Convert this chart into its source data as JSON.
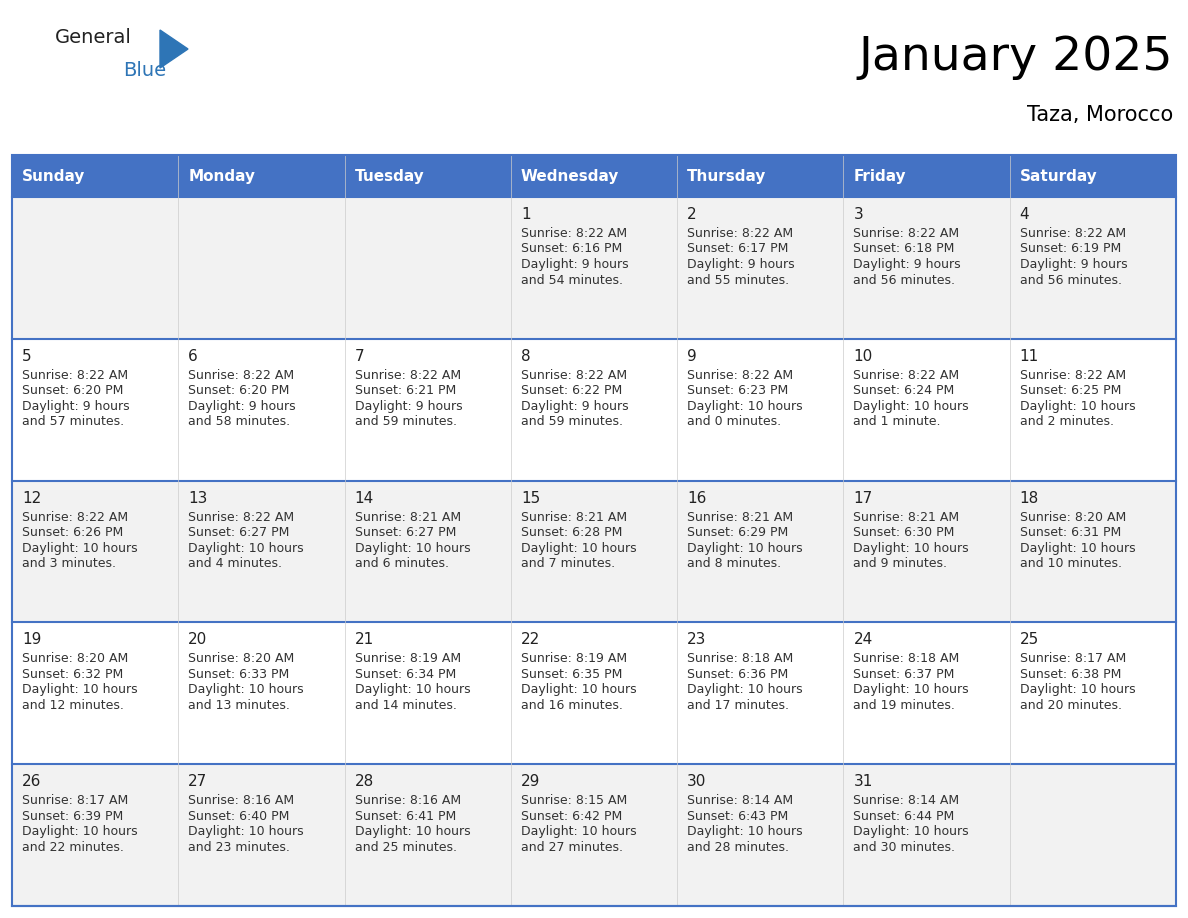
{
  "title": "January 2025",
  "subtitle": "Taza, Morocco",
  "days_of_week": [
    "Sunday",
    "Monday",
    "Tuesday",
    "Wednesday",
    "Thursday",
    "Friday",
    "Saturday"
  ],
  "header_bg": "#4472C4",
  "header_text": "#FFFFFF",
  "cell_bg_odd": "#F2F2F2",
  "cell_bg_even": "#FFFFFF",
  "row_separator_color": "#4472C4",
  "col_separator_color": "#CCCCCC",
  "day_num_color": "#222222",
  "text_color": "#333333",
  "calendar_data": [
    [
      {
        "day": null,
        "sunrise": null,
        "sunset": null,
        "daylight": null
      },
      {
        "day": null,
        "sunrise": null,
        "sunset": null,
        "daylight": null
      },
      {
        "day": null,
        "sunrise": null,
        "sunset": null,
        "daylight": null
      },
      {
        "day": 1,
        "sunrise": "8:22 AM",
        "sunset": "6:16 PM",
        "daylight": "9 hours and 54 minutes."
      },
      {
        "day": 2,
        "sunrise": "8:22 AM",
        "sunset": "6:17 PM",
        "daylight": "9 hours and 55 minutes."
      },
      {
        "day": 3,
        "sunrise": "8:22 AM",
        "sunset": "6:18 PM",
        "daylight": "9 hours and 56 minutes."
      },
      {
        "day": 4,
        "sunrise": "8:22 AM",
        "sunset": "6:19 PM",
        "daylight": "9 hours and 56 minutes."
      }
    ],
    [
      {
        "day": 5,
        "sunrise": "8:22 AM",
        "sunset": "6:20 PM",
        "daylight": "9 hours and 57 minutes."
      },
      {
        "day": 6,
        "sunrise": "8:22 AM",
        "sunset": "6:20 PM",
        "daylight": "9 hours and 58 minutes."
      },
      {
        "day": 7,
        "sunrise": "8:22 AM",
        "sunset": "6:21 PM",
        "daylight": "9 hours and 59 minutes."
      },
      {
        "day": 8,
        "sunrise": "8:22 AM",
        "sunset": "6:22 PM",
        "daylight": "9 hours and 59 minutes."
      },
      {
        "day": 9,
        "sunrise": "8:22 AM",
        "sunset": "6:23 PM",
        "daylight": "10 hours and 0 minutes."
      },
      {
        "day": 10,
        "sunrise": "8:22 AM",
        "sunset": "6:24 PM",
        "daylight": "10 hours and 1 minute."
      },
      {
        "day": 11,
        "sunrise": "8:22 AM",
        "sunset": "6:25 PM",
        "daylight": "10 hours and 2 minutes."
      }
    ],
    [
      {
        "day": 12,
        "sunrise": "8:22 AM",
        "sunset": "6:26 PM",
        "daylight": "10 hours and 3 minutes."
      },
      {
        "day": 13,
        "sunrise": "8:22 AM",
        "sunset": "6:27 PM",
        "daylight": "10 hours and 4 minutes."
      },
      {
        "day": 14,
        "sunrise": "8:21 AM",
        "sunset": "6:27 PM",
        "daylight": "10 hours and 6 minutes."
      },
      {
        "day": 15,
        "sunrise": "8:21 AM",
        "sunset": "6:28 PM",
        "daylight": "10 hours and 7 minutes."
      },
      {
        "day": 16,
        "sunrise": "8:21 AM",
        "sunset": "6:29 PM",
        "daylight": "10 hours and 8 minutes."
      },
      {
        "day": 17,
        "sunrise": "8:21 AM",
        "sunset": "6:30 PM",
        "daylight": "10 hours and 9 minutes."
      },
      {
        "day": 18,
        "sunrise": "8:20 AM",
        "sunset": "6:31 PM",
        "daylight": "10 hours and 10 minutes."
      }
    ],
    [
      {
        "day": 19,
        "sunrise": "8:20 AM",
        "sunset": "6:32 PM",
        "daylight": "10 hours and 12 minutes."
      },
      {
        "day": 20,
        "sunrise": "8:20 AM",
        "sunset": "6:33 PM",
        "daylight": "10 hours and 13 minutes."
      },
      {
        "day": 21,
        "sunrise": "8:19 AM",
        "sunset": "6:34 PM",
        "daylight": "10 hours and 14 minutes."
      },
      {
        "day": 22,
        "sunrise": "8:19 AM",
        "sunset": "6:35 PM",
        "daylight": "10 hours and 16 minutes."
      },
      {
        "day": 23,
        "sunrise": "8:18 AM",
        "sunset": "6:36 PM",
        "daylight": "10 hours and 17 minutes."
      },
      {
        "day": 24,
        "sunrise": "8:18 AM",
        "sunset": "6:37 PM",
        "daylight": "10 hours and 19 minutes."
      },
      {
        "day": 25,
        "sunrise": "8:17 AM",
        "sunset": "6:38 PM",
        "daylight": "10 hours and 20 minutes."
      }
    ],
    [
      {
        "day": 26,
        "sunrise": "8:17 AM",
        "sunset": "6:39 PM",
        "daylight": "10 hours and 22 minutes."
      },
      {
        "day": 27,
        "sunrise": "8:16 AM",
        "sunset": "6:40 PM",
        "daylight": "10 hours and 23 minutes."
      },
      {
        "day": 28,
        "sunrise": "8:16 AM",
        "sunset": "6:41 PM",
        "daylight": "10 hours and 25 minutes."
      },
      {
        "day": 29,
        "sunrise": "8:15 AM",
        "sunset": "6:42 PM",
        "daylight": "10 hours and 27 minutes."
      },
      {
        "day": 30,
        "sunrise": "8:14 AM",
        "sunset": "6:43 PM",
        "daylight": "10 hours and 28 minutes."
      },
      {
        "day": 31,
        "sunrise": "8:14 AM",
        "sunset": "6:44 PM",
        "daylight": "10 hours and 30 minutes."
      },
      {
        "day": null,
        "sunrise": null,
        "sunset": null,
        "daylight": null
      }
    ]
  ],
  "logo_text1": "General",
  "logo_text2": "Blue",
  "logo_color1": "#222222",
  "logo_color2": "#2E75B6",
  "logo_triangle_color": "#2E75B6",
  "figsize": [
    11.88,
    9.18
  ],
  "dpi": 100,
  "title_fontsize": 34,
  "subtitle_fontsize": 15,
  "header_fontsize": 11,
  "day_num_fontsize": 11,
  "cell_text_fontsize": 9,
  "logo_fontsize": 14
}
